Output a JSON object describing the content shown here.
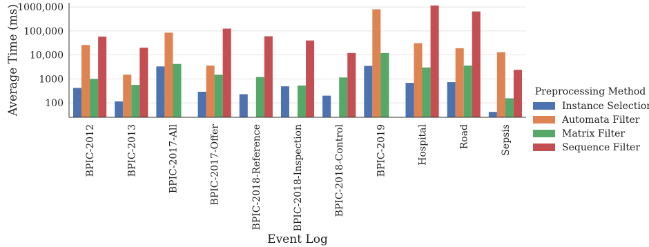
{
  "chart_data": {
    "type": "bar",
    "xlabel": "Event Log",
    "ylabel": "Average Time (ms)",
    "yscale": "log",
    "ylim": [
      25,
      1500000
    ],
    "yticks": [
      100,
      1000,
      10000,
      100000,
      1000000
    ],
    "ytick_labels": [
      "100",
      "1000",
      "10,000",
      "100,000",
      "1000,000"
    ],
    "grid": "horizontal",
    "legend_title": "Preprocessing Method",
    "legend_position": "right",
    "categories": [
      "BPIC-2012",
      "BPIC-2013",
      "BPIC-2017-All",
      "BPIC-2017-Offer",
      "BPIC-2018-Reference",
      "BPIC-2018-Inspection",
      "BPIC-2018-Control",
      "BPIC-2019",
      "Hospital",
      "Road",
      "Sepsis"
    ],
    "series": [
      {
        "name": "Instance Selection",
        "color": "#4c72b0",
        "values": [
          420,
          115,
          3300,
          290,
          230,
          490,
          200,
          3500,
          680,
          730,
          42
        ]
      },
      {
        "name": "Automata Filter",
        "color": "#dd8452",
        "values": [
          26000,
          1500,
          85000,
          3600,
          null,
          null,
          null,
          800000,
          31000,
          19000,
          13000
        ]
      },
      {
        "name": "Matrix Filter",
        "color": "#55a868",
        "values": [
          1000,
          560,
          4200,
          1500,
          1200,
          530,
          1150,
          12000,
          3000,
          3600,
          155
        ]
      },
      {
        "name": "Sequence Filter",
        "color": "#c44e52",
        "values": [
          58000,
          20000,
          null,
          125000,
          60000,
          40000,
          12000,
          null,
          1150000,
          650000,
          2400
        ]
      }
    ]
  }
}
